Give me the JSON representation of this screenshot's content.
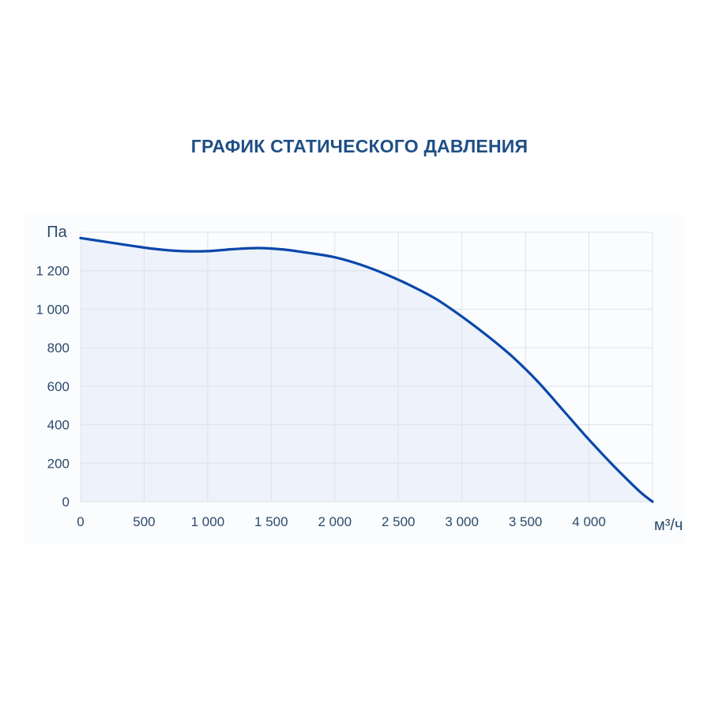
{
  "chart_data": {
    "type": "area",
    "title": "ГРАФИК СТАТИЧЕСКОГО ДАВЛЕНИЯ",
    "xlabel": "м³/ч",
    "ylabel": "Па",
    "xlim": [
      0,
      4500
    ],
    "ylim": [
      0,
      1400
    ],
    "x_ticks": [
      0,
      500,
      1000,
      1500,
      2000,
      2500,
      3000,
      3500,
      4000
    ],
    "x_tick_labels": [
      "0",
      "500",
      "1 000",
      "1 500",
      "2 000",
      "2 500",
      "3 000",
      "3 500",
      "4 000"
    ],
    "y_ticks": [
      0,
      200,
      400,
      600,
      800,
      1000,
      1200
    ],
    "y_tick_labels": [
      "0",
      "200",
      "400",
      "600",
      "800",
      "1 000",
      "1 200"
    ],
    "grid": true,
    "series": [
      {
        "x": [
          0,
          200,
          400,
          600,
          800,
          1000,
          1200,
          1400,
          1600,
          1800,
          2000,
          2200,
          2400,
          2600,
          2800,
          3000,
          3200,
          3400,
          3600,
          3800,
          4000,
          4200,
          4400,
          4500
        ],
        "values": [
          1370,
          1350,
          1330,
          1312,
          1302,
          1302,
          1312,
          1318,
          1310,
          1292,
          1270,
          1232,
          1182,
          1122,
          1052,
          962,
          862,
          752,
          622,
          472,
          322,
          182,
          52,
          0
        ]
      }
    ],
    "colors": {
      "line": "#0b47aa",
      "fill": "#edf2fb",
      "grid": "#dde3ea",
      "title": "#1f4f86",
      "text": "#2c4a6b"
    }
  }
}
